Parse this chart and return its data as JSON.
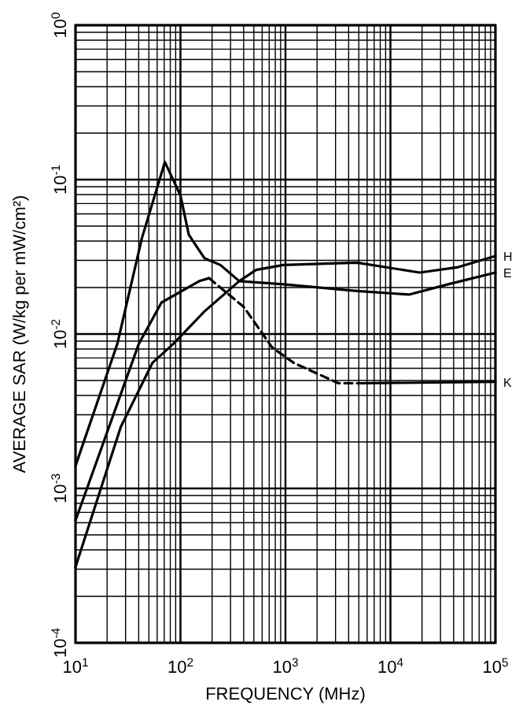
{
  "chart_data": {
    "type": "line",
    "xlabel": "FREQUENCY (MHz)",
    "ylabel": "AVERAGE SAR (W/kg per mW/cm²)",
    "log": "xy",
    "grid": true,
    "marker": "none",
    "xlim": [
      10,
      100000
    ],
    "ylim": [
      0.0001,
      1
    ],
    "xticks": [
      {
        "value": 10,
        "label": "10$^{1}$"
      },
      {
        "value": 100,
        "label": "10$^{2}$"
      },
      {
        "value": 1000,
        "label": "10$^{3}$"
      },
      {
        "value": 10000,
        "label": "10$^{4}$"
      },
      {
        "value": 100000,
        "label": "10$^{5}$"
      }
    ],
    "yticks": [
      {
        "value": 0.0001,
        "label": "10$^{-4}$"
      },
      {
        "value": 0.001,
        "label": "10$^{-3}$"
      },
      {
        "value": 0.01,
        "label": "10$^{-2}$"
      },
      {
        "value": 0.1,
        "label": "10$^{-1}$"
      },
      {
        "value": 1,
        "label": "10$^{0}$"
      }
    ],
    "series": [
      {
        "name": "E",
        "color": "#000000",
        "line_style": "solid",
        "x": [
          10,
          25,
          43,
          71,
          100,
          120,
          169,
          240,
          363,
          955,
          4800,
          15000,
          35500,
          100000
        ],
        "values": [
          0.0014,
          0.0086,
          0.042,
          0.13,
          0.079,
          0.044,
          0.031,
          0.028,
          0.022,
          0.021,
          0.019,
          0.018,
          0.021,
          0.025
        ]
      },
      {
        "name": "H",
        "color": "#000000",
        "line_style": "solid",
        "x": [
          10,
          27,
          54,
          85,
          169,
          363,
          525,
          955,
          4800,
          19000,
          43000,
          100000
        ],
        "values": [
          0.00031,
          0.0025,
          0.0065,
          0.0086,
          0.014,
          0.022,
          0.026,
          0.028,
          0.029,
          0.025,
          0.027,
          0.032
        ]
      },
      {
        "color": "#000000",
        "line_style": "solid",
        "x": [
          10,
          40,
          66,
          151,
          187
        ],
        "values": [
          0.00062,
          0.0086,
          0.016,
          0.022,
          0.023
        ]
      },
      {
        "color": "#000000",
        "line_style": "dashed",
        "x": [
          187,
          400,
          745,
          1200,
          3200,
          5400
        ],
        "values": [
          0.023,
          0.015,
          0.0082,
          0.0065,
          0.0048,
          0.0048
        ]
      },
      {
        "name": "K",
        "color": "#000000",
        "line_style": "solid",
        "x": [
          5400,
          100000
        ],
        "values": [
          0.0048,
          0.0049
        ]
      }
    ]
  }
}
